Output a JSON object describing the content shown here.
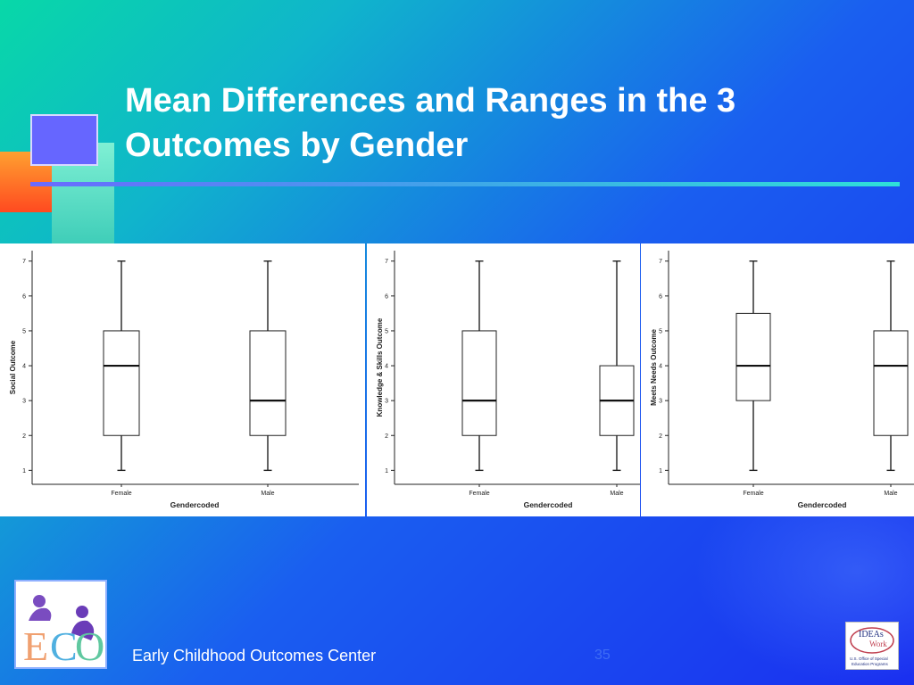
{
  "slide": {
    "title_line1": "Mean Differences and Ranges in the 3",
    "title_line2": "Outcomes by Gender",
    "footer": "Early Childhood Outcomes Center",
    "page_number": "35",
    "eco_logo_text": "ECO",
    "ideas_logo_text": "IDEAs that Work U.S. Office of Special Education Programs"
  },
  "chart_data": [
    {
      "type": "box",
      "ylabel": "Social Outcome",
      "xlabel": "Gendercoded",
      "ylim": [
        0.6,
        7.3
      ],
      "yticks": [
        "1",
        "2",
        "3",
        "4",
        "5",
        "6",
        "7"
      ],
      "categories": [
        "Female",
        "Male"
      ],
      "boxes": [
        {
          "min": 1,
          "q1": 2,
          "median": 4,
          "q3": 5,
          "max": 7
        },
        {
          "min": 1,
          "q1": 2,
          "median": 3,
          "q3": 5,
          "max": 7
        }
      ]
    },
    {
      "type": "box",
      "ylabel": "Knowledge & Skills Outcome",
      "xlabel": "Gendercoded",
      "ylim": [
        0.6,
        7.3
      ],
      "yticks": [
        "1",
        "2",
        "3",
        "4",
        "5",
        "6",
        "7"
      ],
      "categories": [
        "Female",
        "Male"
      ],
      "boxes": [
        {
          "min": 1,
          "q1": 2,
          "median": 3,
          "q3": 5,
          "max": 7
        },
        {
          "min": 1,
          "q1": 2,
          "median": 3,
          "q3": 4,
          "max": 7
        }
      ]
    },
    {
      "type": "box",
      "ylabel": "Meets Needs Outcome",
      "xlabel": "Gendercoded",
      "ylim": [
        0.6,
        7.3
      ],
      "yticks": [
        "1",
        "2",
        "3",
        "4",
        "5",
        "6",
        "7"
      ],
      "categories": [
        "Female",
        "Male"
      ],
      "boxes": [
        {
          "min": 1,
          "q1": 3,
          "median": 4,
          "q3": 5.5,
          "max": 7
        },
        {
          "min": 1,
          "q1": 2,
          "median": 4,
          "q3": 5,
          "max": 7
        }
      ]
    }
  ]
}
